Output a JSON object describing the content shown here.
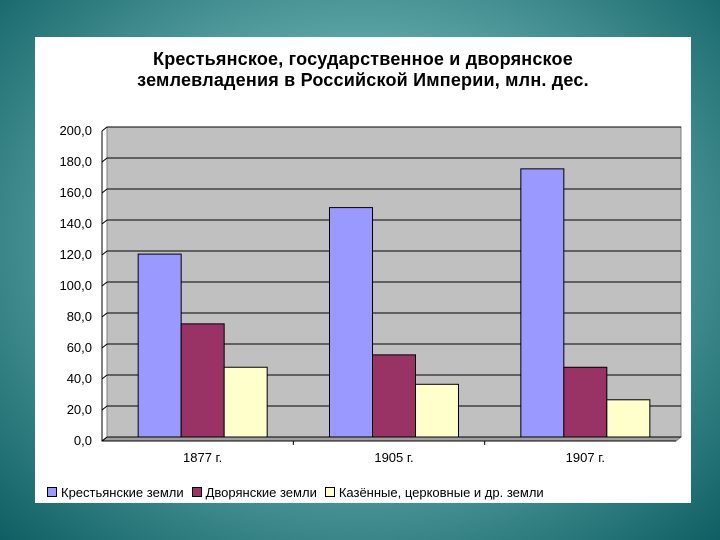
{
  "chart_data": {
    "type": "bar",
    "title_lines": [
      "Крестьянское, государственное и дворянское",
      "землевладения в Российской Империи, млн. дес."
    ],
    "categories": [
      "1877 г.",
      "1905 г.",
      "1907 г."
    ],
    "series": [
      {
        "name": "Крестьянские земли",
        "color": "#9999ff",
        "values": [
          118,
          148,
          173
        ]
      },
      {
        "name": "Дворянские земли",
        "color": "#993366",
        "values": [
          73,
          53,
          45
        ]
      },
      {
        "name": "Казённые, церковные и др. земли",
        "color": "#ffffcc",
        "values": [
          45,
          34,
          24
        ]
      }
    ],
    "ylim": [
      0,
      200
    ],
    "yticks": [
      "0,0",
      "20,0",
      "40,0",
      "60,0",
      "80,0",
      "100,0",
      "120,0",
      "140,0",
      "160,0",
      "180,0",
      "200,0"
    ],
    "grid": true,
    "plot_background": "#c0c0c0",
    "legend_position": "bottom"
  }
}
